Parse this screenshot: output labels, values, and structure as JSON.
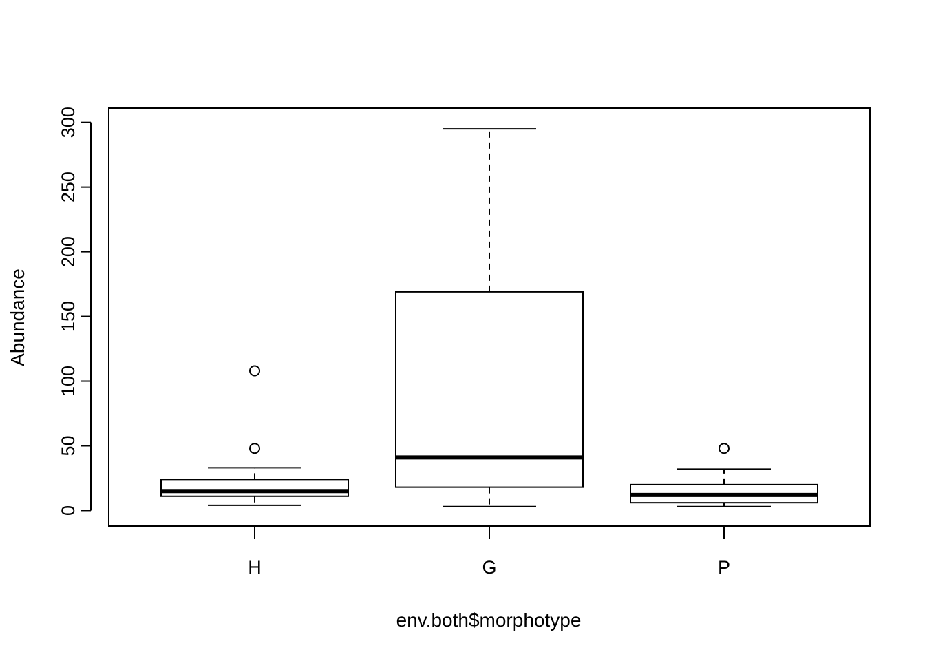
{
  "chart_data": {
    "type": "box",
    "xlabel": "env.both$morphotype",
    "ylabel": "Abundance",
    "categories": [
      "H",
      "G",
      "P"
    ],
    "yticks": [
      0,
      50,
      100,
      150,
      200,
      250,
      300
    ],
    "ylim": [
      -12,
      311
    ],
    "grid": false,
    "boxes": [
      {
        "name": "H",
        "whisker_low": 4,
        "q1": 11,
        "median": 15,
        "q3": 24,
        "whisker_high": 33,
        "outliers": [
          48,
          108
        ]
      },
      {
        "name": "G",
        "whisker_low": 3,
        "q1": 18,
        "median": 41,
        "q3": 169,
        "whisker_high": 295,
        "outliers": []
      },
      {
        "name": "P",
        "whisker_low": 3,
        "q1": 6,
        "median": 12,
        "q3": 20,
        "whisker_high": 32,
        "outliers": [
          48
        ]
      }
    ]
  },
  "colors": {
    "stroke": "#000000",
    "box_fill": "#ffffff",
    "background": "#ffffff"
  }
}
